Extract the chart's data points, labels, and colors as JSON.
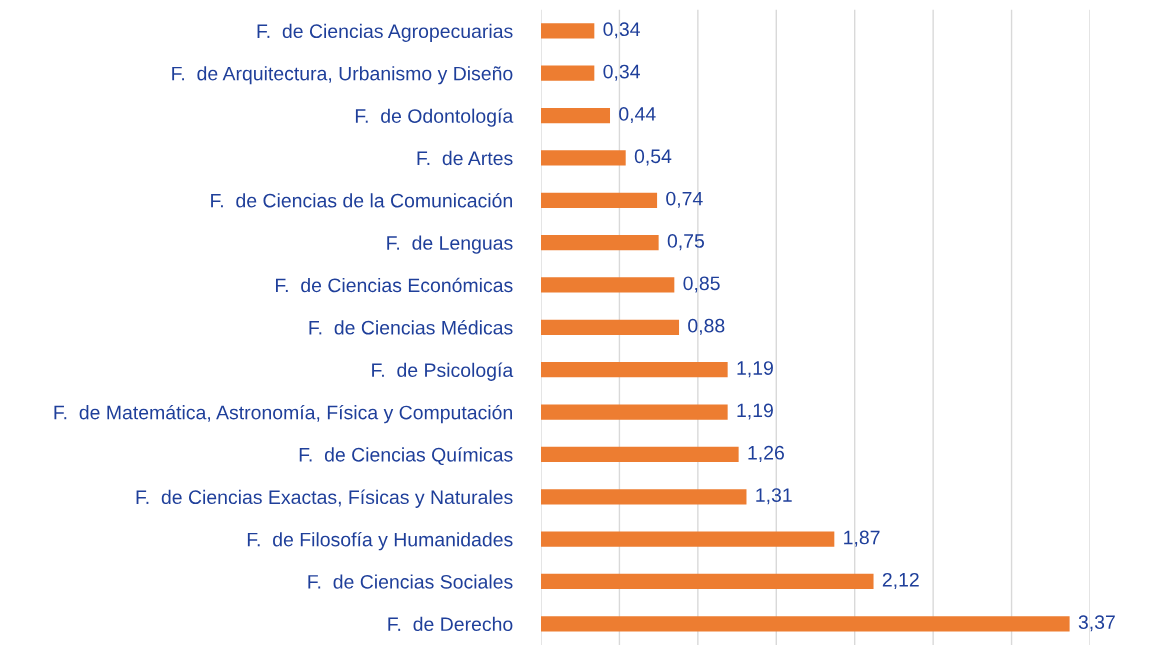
{
  "chart_data": {
    "type": "bar",
    "orientation": "horizontal",
    "categories": [
      "F.  de Ciencias Agropecuarias",
      "F.  de Arquitectura, Urbanismo y Diseño",
      "F.  de Odontología",
      "F.  de Artes",
      "F.  de Ciencias de la Comunicación",
      "F.  de Lenguas",
      "F.  de Ciencias Económicas",
      "F.  de Ciencias Médicas",
      "F.  de Psicología",
      "F.  de Matemática, Astronomía, Física y Computación",
      "F.  de Ciencias Químicas",
      "F.  de Ciencias Exactas, Físicas y Naturales",
      "F.  de Filosofía y Humanidades",
      "F.  de Ciencias Sociales",
      "F.  de Derecho"
    ],
    "values": [
      0.34,
      0.34,
      0.44,
      0.54,
      0.74,
      0.75,
      0.85,
      0.88,
      1.19,
      1.19,
      1.26,
      1.31,
      1.87,
      2.12,
      3.37
    ],
    "value_labels": [
      "0,34",
      "0,34",
      "0,44",
      "0,54",
      "0,74",
      "0,75",
      "0,85",
      "0,88",
      "1,19",
      "1,19",
      "1,26",
      "1,31",
      "1,87",
      "2,12",
      "3,37"
    ],
    "color": "#ed7d31",
    "xlim": [
      0,
      3.5
    ],
    "xticks": [
      {
        "value": 0,
        "label": null
      },
      {
        "value": 0.5,
        "label": null
      },
      {
        "value": 1,
        "label": null
      },
      {
        "value": 1.5,
        "label": null
      },
      {
        "value": 2,
        "label": null
      },
      {
        "value": 2.5,
        "label": null
      },
      {
        "value": 3,
        "label": null
      },
      {
        "value": 3.5,
        "label": null
      }
    ],
    "tick_labels": "y",
    "grid": "x",
    "legend": false
  }
}
